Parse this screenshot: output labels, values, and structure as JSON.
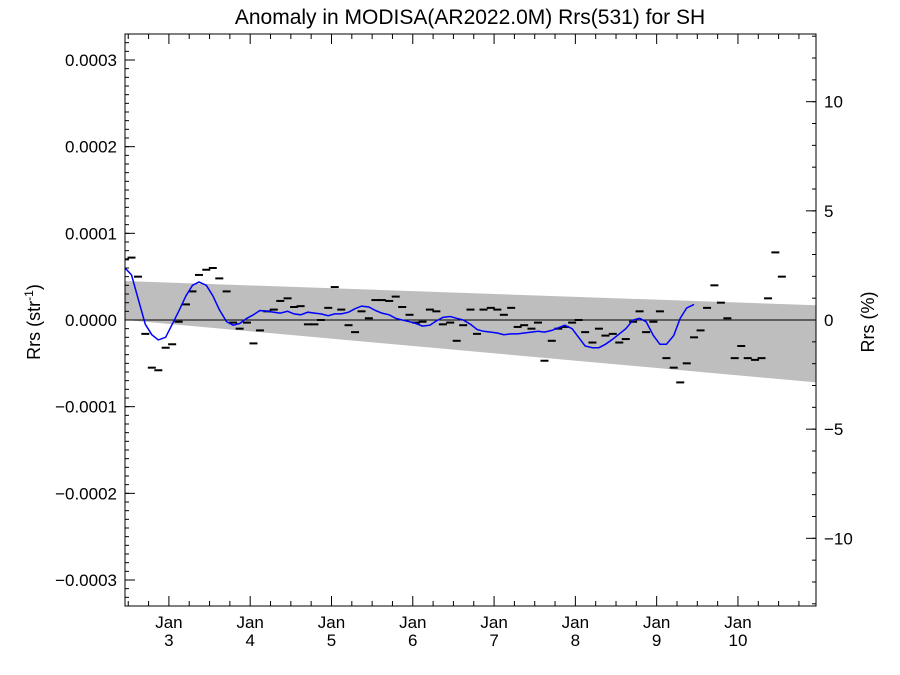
{
  "chart_data": {
    "type": "scatter",
    "title": "Anomaly in MODISA(AR2022.0M) Rrs(531) for SH",
    "ylabel_left": "Rrs (str",
    "ylabel_left_sup": "-1",
    "ylabel_left_close": ")",
    "ylabel_right": "Rrs (%)",
    "x_ticks": [
      {
        "top": "Jan",
        "bottom": "3",
        "year": 2003
      },
      {
        "top": "Jan",
        "bottom": "4",
        "year": 2004
      },
      {
        "top": "Jan",
        "bottom": "5",
        "year": 2005
      },
      {
        "top": "Jan",
        "bottom": "6",
        "year": 2006
      },
      {
        "top": "Jan",
        "bottom": "7",
        "year": 2007
      },
      {
        "top": "Jan",
        "bottom": "8",
        "year": 2008
      },
      {
        "top": "Jan",
        "bottom": "9",
        "year": 2009
      },
      {
        "top": "Jan",
        "bottom": "10",
        "year": 2010
      }
    ],
    "xlim": [
      2002.46,
      2010.96
    ],
    "ylim": [
      -0.00033,
      0.00033
    ],
    "y_ticks": [
      {
        "value": 0.0003,
        "label": "0.0003"
      },
      {
        "value": 0.0002,
        "label": "0.0002"
      },
      {
        "value": 0.0001,
        "label": "0.0001"
      },
      {
        "value": 0.0,
        "label": "0.0000"
      },
      {
        "value": -0.0001,
        "label": "−0.0001"
      },
      {
        "value": -0.0002,
        "label": "−0.0002"
      },
      {
        "value": -0.0003,
        "label": "−0.0003"
      }
    ],
    "y2lim": [
      -13.1,
      13.1
    ],
    "y2_ticks": [
      {
        "value": 10,
        "label": "10"
      },
      {
        "value": 5,
        "label": "5"
      },
      {
        "value": 0,
        "label": "0"
      },
      {
        "value": -5,
        "label": "−5"
      },
      {
        "value": -10,
        "label": "−10"
      }
    ],
    "envelope": {
      "color": "#bebebe",
      "upper": [
        [
          2002.46,
          4.5e-05
        ],
        [
          2010.96,
          1.7e-05
        ]
      ],
      "lower": [
        [
          2002.46,
          0.0
        ],
        [
          2010.96,
          -7.2e-05
        ]
      ]
    },
    "zero_line": true,
    "series": [
      {
        "kind": "monthly-markers",
        "color": "#000000",
        "points": [
          [
            2002.46,
            7e-05
          ],
          [
            2002.54,
            7.2e-05
          ],
          [
            2002.62,
            5e-05
          ],
          [
            2002.71,
            -1.6e-05
          ],
          [
            2002.79,
            -5.5e-05
          ],
          [
            2002.87,
            -5.8e-05
          ],
          [
            2002.96,
            -3.2e-05
          ],
          [
            2003.04,
            -2.8e-05
          ],
          [
            2003.12,
            -2e-06
          ],
          [
            2003.21,
            1.8e-05
          ],
          [
            2003.29,
            3.3e-05
          ],
          [
            2003.37,
            5.2e-05
          ],
          [
            2003.46,
            5.8e-05
          ],
          [
            2003.54,
            6e-05
          ],
          [
            2003.62,
            4.8e-05
          ],
          [
            2003.71,
            3.3e-05
          ],
          [
            2003.79,
            -3e-06
          ],
          [
            2003.87,
            -1e-05
          ],
          [
            2003.96,
            -3e-06
          ],
          [
            2004.04,
            -2.7e-05
          ],
          [
            2004.12,
            -1.2e-05
          ],
          [
            2004.21,
            1e-05
          ],
          [
            2004.29,
            1.2e-05
          ],
          [
            2004.37,
            2.2e-05
          ],
          [
            2004.46,
            2.5e-05
          ],
          [
            2004.54,
            1.5e-05
          ],
          [
            2004.62,
            1.6e-05
          ],
          [
            2004.71,
            -5e-06
          ],
          [
            2004.79,
            -5e-06
          ],
          [
            2004.87,
            0.0
          ],
          [
            2004.96,
            1.4e-05
          ],
          [
            2005.04,
            3.8e-05
          ],
          [
            2005.12,
            1.2e-05
          ],
          [
            2005.21,
            -6e-06
          ],
          [
            2005.29,
            -1.4e-05
          ],
          [
            2005.37,
            1e-05
          ],
          [
            2005.46,
            2e-06
          ],
          [
            2005.54,
            2.3e-05
          ],
          [
            2005.62,
            2.3e-05
          ],
          [
            2005.71,
            2.2e-05
          ],
          [
            2005.79,
            2.7e-05
          ],
          [
            2005.87,
            1.5e-05
          ],
          [
            2005.96,
            6e-06
          ],
          [
            2006.04,
            -3e-06
          ],
          [
            2006.12,
            -2e-06
          ],
          [
            2006.21,
            1.2e-05
          ],
          [
            2006.29,
            1e-05
          ],
          [
            2006.37,
            -5e-06
          ],
          [
            2006.46,
            -3e-06
          ],
          [
            2006.54,
            -2.4e-05
          ],
          [
            2006.62,
            -6e-06
          ],
          [
            2006.71,
            1.2e-05
          ],
          [
            2006.79,
            -1.6e-05
          ],
          [
            2006.87,
            1.2e-05
          ],
          [
            2006.96,
            1.4e-05
          ],
          [
            2007.04,
            1.2e-05
          ],
          [
            2007.12,
            6e-06
          ],
          [
            2007.21,
            1.4e-05
          ],
          [
            2007.29,
            -8e-06
          ],
          [
            2007.37,
            -6e-06
          ],
          [
            2007.46,
            -1e-05
          ],
          [
            2007.54,
            -3e-06
          ],
          [
            2007.62,
            -4.7e-05
          ],
          [
            2007.71,
            -2.4e-05
          ],
          [
            2007.79,
            -1e-05
          ],
          [
            2007.87,
            -8e-06
          ],
          [
            2007.96,
            -3e-06
          ],
          [
            2008.04,
            0.0
          ],
          [
            2008.12,
            -1.4e-05
          ],
          [
            2008.21,
            -2.6e-05
          ],
          [
            2008.29,
            -1e-05
          ],
          [
            2008.37,
            -1.8e-05
          ],
          [
            2008.46,
            -1.6e-05
          ],
          [
            2008.54,
            -2.6e-05
          ],
          [
            2008.62,
            -2.2e-05
          ],
          [
            2008.71,
            -2e-06
          ],
          [
            2008.79,
            1e-05
          ],
          [
            2008.87,
            -1.4e-05
          ],
          [
            2008.96,
            -2e-06
          ],
          [
            2009.04,
            1e-05
          ],
          [
            2009.12,
            -4.4e-05
          ],
          [
            2009.21,
            -5.5e-05
          ],
          [
            2009.29,
            -7.2e-05
          ],
          [
            2009.37,
            -5e-05
          ],
          [
            2009.46,
            -2e-05
          ],
          [
            2009.54,
            -1.2e-05
          ],
          [
            2009.62,
            1.4e-05
          ],
          [
            2009.71,
            4e-05
          ],
          [
            2009.79,
            2e-05
          ],
          [
            2009.87,
            2e-06
          ],
          [
            2009.96,
            -4.4e-05
          ],
          [
            2010.04,
            -3e-05
          ],
          [
            2010.12,
            -4.4e-05
          ],
          [
            2010.21,
            -4.6e-05
          ],
          [
            2010.29,
            -4.4e-05
          ],
          [
            2010.37,
            2.5e-05
          ],
          [
            2010.46,
            7.8e-05
          ],
          [
            2010.54,
            5e-05
          ]
        ]
      },
      {
        "kind": "smoothed-line",
        "color": "#0000ff",
        "points": [
          [
            2002.46,
            6e-05
          ],
          [
            2002.54,
            5.2e-05
          ],
          [
            2002.62,
            2.5e-05
          ],
          [
            2002.71,
            -5e-06
          ],
          [
            2002.79,
            -1.7e-05
          ],
          [
            2002.87,
            -2.3e-05
          ],
          [
            2002.96,
            -2e-05
          ],
          [
            2003.04,
            -5e-06
          ],
          [
            2003.12,
            1e-05
          ],
          [
            2003.21,
            2.8e-05
          ],
          [
            2003.29,
            4e-05
          ],
          [
            2003.37,
            4.4e-05
          ],
          [
            2003.46,
            4e-05
          ],
          [
            2003.54,
            2.8e-05
          ],
          [
            2003.62,
            1.2e-05
          ],
          [
            2003.71,
            -2e-06
          ],
          [
            2003.79,
            -6e-06
          ],
          [
            2003.87,
            -4e-06
          ],
          [
            2003.96,
            2e-06
          ],
          [
            2004.04,
            6e-06
          ],
          [
            2004.12,
            1.1e-05
          ],
          [
            2004.21,
            1e-05
          ],
          [
            2004.29,
            9e-06
          ],
          [
            2004.37,
            8e-06
          ],
          [
            2004.46,
            1e-05
          ],
          [
            2004.54,
            7e-06
          ],
          [
            2004.62,
            6e-06
          ],
          [
            2004.71,
            9e-06
          ],
          [
            2004.79,
            8e-06
          ],
          [
            2004.87,
            7e-06
          ],
          [
            2004.96,
            5e-06
          ],
          [
            2005.04,
            7e-06
          ],
          [
            2005.12,
            7e-06
          ],
          [
            2005.21,
            9e-06
          ],
          [
            2005.29,
            1.3e-05
          ],
          [
            2005.37,
            1.6e-05
          ],
          [
            2005.46,
            1.5e-05
          ],
          [
            2005.54,
            1.1e-05
          ],
          [
            2005.62,
            8e-06
          ],
          [
            2005.71,
            6e-06
          ],
          [
            2005.79,
            2e-06
          ],
          [
            2005.87,
            0.0
          ],
          [
            2005.96,
            -2e-06
          ],
          [
            2006.04,
            -4e-06
          ],
          [
            2006.12,
            -7e-06
          ],
          [
            2006.21,
            -6e-06
          ],
          [
            2006.29,
            -1e-06
          ],
          [
            2006.37,
            3e-06
          ],
          [
            2006.46,
            4e-06
          ],
          [
            2006.54,
            2e-06
          ],
          [
            2006.62,
            0.0
          ],
          [
            2006.71,
            -5e-06
          ],
          [
            2006.79,
            -1.1e-05
          ],
          [
            2006.87,
            -1.3e-05
          ],
          [
            2006.96,
            -1.4e-05
          ],
          [
            2007.04,
            -1.5e-05
          ],
          [
            2007.12,
            -1.7e-05
          ],
          [
            2007.21,
            -1.6e-05
          ],
          [
            2007.29,
            -1.6e-05
          ],
          [
            2007.37,
            -1.5e-05
          ],
          [
            2007.46,
            -1.4e-05
          ],
          [
            2007.54,
            -1.3e-05
          ],
          [
            2007.62,
            -1.4e-05
          ],
          [
            2007.71,
            -1.2e-05
          ],
          [
            2007.79,
            -9e-06
          ],
          [
            2007.87,
            -6e-06
          ],
          [
            2007.96,
            -1e-05
          ],
          [
            2008.04,
            -2e-05
          ],
          [
            2008.12,
            -3e-05
          ],
          [
            2008.21,
            -3.2e-05
          ],
          [
            2008.29,
            -3.2e-05
          ],
          [
            2008.37,
            -2.8e-05
          ],
          [
            2008.46,
            -2.2e-05
          ],
          [
            2008.54,
            -1.6e-05
          ],
          [
            2008.62,
            -1e-05
          ],
          [
            2008.71,
            0.0
          ],
          [
            2008.79,
            2e-06
          ],
          [
            2008.87,
            -2e-06
          ],
          [
            2008.96,
            -1.8e-05
          ],
          [
            2009.04,
            -2.8e-05
          ],
          [
            2009.12,
            -2.8e-05
          ],
          [
            2009.21,
            -1.8e-05
          ],
          [
            2009.29,
            2e-06
          ],
          [
            2009.37,
            1.4e-05
          ],
          [
            2009.46,
            1.8e-05
          ]
        ]
      }
    ]
  }
}
